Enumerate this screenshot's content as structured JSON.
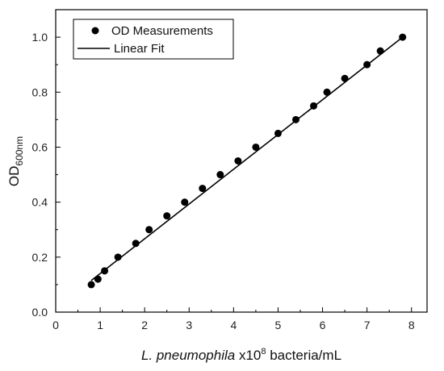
{
  "chart_data": {
    "type": "scatter",
    "xlabel_italic": "L. pneumophila",
    "xlabel_rest": " x10",
    "xlabel_sup": "8",
    "xlabel_tail": " bacteria/mL",
    "ylabel_main": "OD",
    "ylabel_sub": "600nm",
    "xlim": [
      0,
      8.35
    ],
    "ylim": [
      0,
      1.1
    ],
    "x_ticks": [
      0,
      1,
      2,
      3,
      4,
      5,
      6,
      7,
      8
    ],
    "y_ticks": [
      0.0,
      0.2,
      0.4,
      0.6,
      0.8,
      1.0
    ],
    "y_tick_labels": [
      "0.0",
      "0.2",
      "0.4",
      "0.6",
      "0.8",
      "1.0"
    ],
    "grid": false,
    "legend_position": "top-left",
    "series": [
      {
        "name": "OD Measurements",
        "marker": "circle",
        "color": "#000000",
        "x": [
          0.8,
          0.95,
          1.1,
          1.4,
          1.8,
          2.1,
          2.5,
          2.9,
          3.3,
          3.7,
          4.1,
          4.5,
          5.0,
          5.4,
          5.8,
          6.1,
          6.5,
          7.0,
          7.3,
          7.8
        ],
        "y": [
          0.1,
          0.12,
          0.15,
          0.2,
          0.25,
          0.3,
          0.35,
          0.4,
          0.45,
          0.5,
          0.55,
          0.6,
          0.65,
          0.7,
          0.75,
          0.8,
          0.85,
          0.9,
          0.95,
          1.0
        ]
      },
      {
        "name": "Linear Fit",
        "marker": "line",
        "color": "#000000",
        "x": [
          0.8,
          7.8
        ],
        "y": [
          0.115,
          1.0
        ]
      }
    ]
  }
}
